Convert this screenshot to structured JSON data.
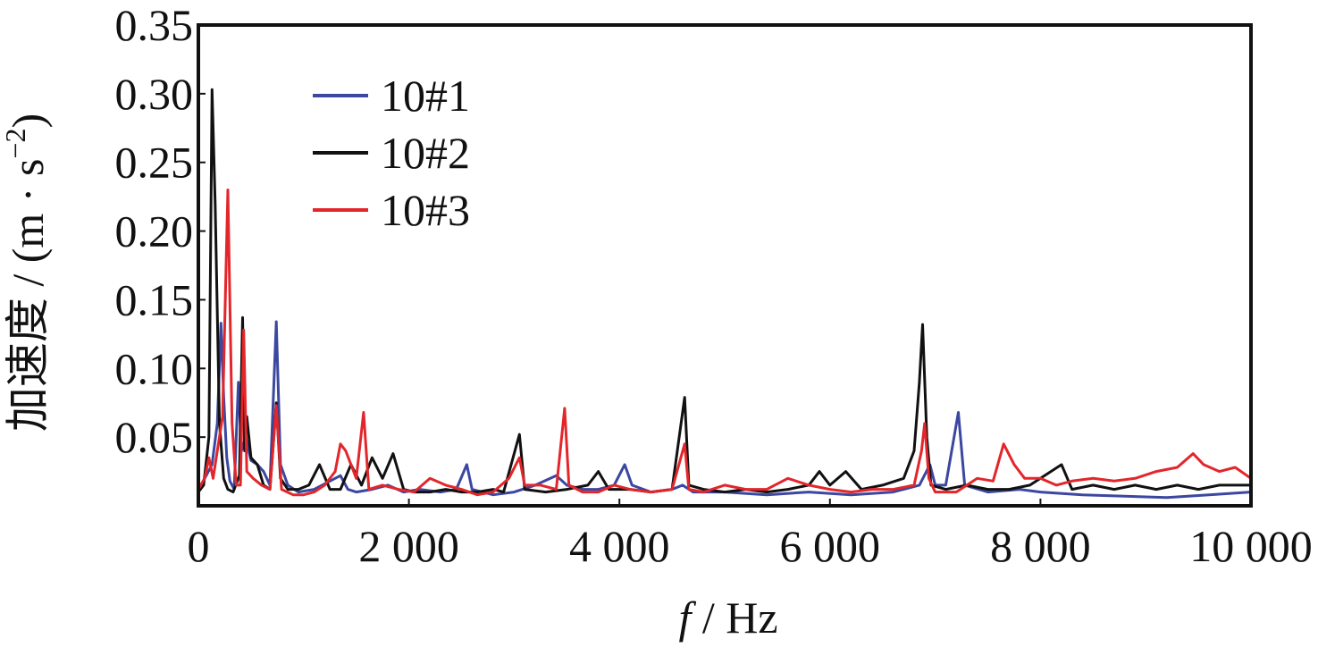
{
  "chart_data": {
    "type": "line",
    "title": "",
    "xlabel": {
      "var": "f",
      "unit": " / Hz"
    },
    "ylabel": {
      "main": "加速度 / (m · s",
      "sup": "−2",
      "close": ")"
    },
    "xlim": [
      0,
      10000
    ],
    "ylim": [
      0,
      0.35
    ],
    "x_ticks": [
      0,
      2000,
      4000,
      6000,
      8000,
      10000
    ],
    "x_tick_labels": [
      "0",
      "2 000",
      "4 000",
      "6 000",
      "8 000",
      "10 000"
    ],
    "y_ticks": [
      0.05,
      0.1,
      0.15,
      0.2,
      0.25,
      0.3,
      0.35
    ],
    "y_tick_labels": [
      "0.05",
      "0.10",
      "0.15",
      "0.20",
      "0.25",
      "0.30",
      "0.35"
    ],
    "grid": false,
    "legend_position": "top-left",
    "series": [
      {
        "name": "10#1",
        "color": "#3b47a0",
        "points": [
          [
            0,
            0.012
          ],
          [
            60,
            0.02
          ],
          [
            130,
            0.03
          ],
          [
            180,
            0.06
          ],
          [
            215,
            0.133
          ],
          [
            240,
            0.08
          ],
          [
            270,
            0.035
          ],
          [
            300,
            0.018
          ],
          [
            340,
            0.012
          ],
          [
            380,
            0.09
          ],
          [
            410,
            0.04
          ],
          [
            450,
            0.05
          ],
          [
            500,
            0.033
          ],
          [
            560,
            0.03
          ],
          [
            620,
            0.025
          ],
          [
            680,
            0.015
          ],
          [
            740,
            0.134
          ],
          [
            780,
            0.03
          ],
          [
            850,
            0.015
          ],
          [
            950,
            0.01
          ],
          [
            1100,
            0.012
          ],
          [
            1250,
            0.018
          ],
          [
            1350,
            0.022
          ],
          [
            1420,
            0.012
          ],
          [
            1500,
            0.01
          ],
          [
            1650,
            0.012
          ],
          [
            1800,
            0.015
          ],
          [
            1950,
            0.01
          ],
          [
            2100,
            0.012
          ],
          [
            2300,
            0.01
          ],
          [
            2450,
            0.012
          ],
          [
            2550,
            0.03
          ],
          [
            2600,
            0.012
          ],
          [
            2800,
            0.008
          ],
          [
            3000,
            0.01
          ],
          [
            3200,
            0.015
          ],
          [
            3400,
            0.022
          ],
          [
            3500,
            0.015
          ],
          [
            3650,
            0.012
          ],
          [
            3800,
            0.012
          ],
          [
            3950,
            0.015
          ],
          [
            4050,
            0.03
          ],
          [
            4120,
            0.015
          ],
          [
            4300,
            0.01
          ],
          [
            4500,
            0.012
          ],
          [
            4600,
            0.015
          ],
          [
            4700,
            0.01
          ],
          [
            5000,
            0.01
          ],
          [
            5400,
            0.008
          ],
          [
            5800,
            0.01
          ],
          [
            6200,
            0.008
          ],
          [
            6600,
            0.01
          ],
          [
            6850,
            0.015
          ],
          [
            6950,
            0.03
          ],
          [
            7000,
            0.015
          ],
          [
            7100,
            0.015
          ],
          [
            7220,
            0.068
          ],
          [
            7280,
            0.015
          ],
          [
            7500,
            0.01
          ],
          [
            7800,
            0.012
          ],
          [
            8000,
            0.01
          ],
          [
            8400,
            0.008
          ],
          [
            8800,
            0.007
          ],
          [
            9200,
            0.006
          ],
          [
            9600,
            0.008
          ],
          [
            10000,
            0.01
          ]
        ]
      },
      {
        "name": "10#2",
        "color": "#111111",
        "points": [
          [
            0,
            0.01
          ],
          [
            50,
            0.015
          ],
          [
            100,
            0.05
          ],
          [
            130,
            0.303
          ],
          [
            160,
            0.22
          ],
          [
            200,
            0.06
          ],
          [
            240,
            0.02
          ],
          [
            280,
            0.012
          ],
          [
            330,
            0.01
          ],
          [
            390,
            0.022
          ],
          [
            420,
            0.137
          ],
          [
            440,
            0.04
          ],
          [
            460,
            0.065
          ],
          [
            500,
            0.035
          ],
          [
            560,
            0.03
          ],
          [
            620,
            0.015
          ],
          [
            680,
            0.012
          ],
          [
            740,
            0.075
          ],
          [
            780,
            0.02
          ],
          [
            850,
            0.012
          ],
          [
            950,
            0.012
          ],
          [
            1050,
            0.015
          ],
          [
            1150,
            0.03
          ],
          [
            1250,
            0.012
          ],
          [
            1350,
            0.012
          ],
          [
            1450,
            0.03
          ],
          [
            1550,
            0.015
          ],
          [
            1650,
            0.035
          ],
          [
            1750,
            0.02
          ],
          [
            1850,
            0.038
          ],
          [
            1950,
            0.012
          ],
          [
            2050,
            0.01
          ],
          [
            2200,
            0.01
          ],
          [
            2350,
            0.012
          ],
          [
            2500,
            0.01
          ],
          [
            2650,
            0.01
          ],
          [
            2800,
            0.012
          ],
          [
            2900,
            0.01
          ],
          [
            3050,
            0.052
          ],
          [
            3100,
            0.012
          ],
          [
            3300,
            0.01
          ],
          [
            3500,
            0.012
          ],
          [
            3700,
            0.015
          ],
          [
            3800,
            0.025
          ],
          [
            3900,
            0.012
          ],
          [
            4100,
            0.012
          ],
          [
            4300,
            0.01
          ],
          [
            4500,
            0.012
          ],
          [
            4620,
            0.079
          ],
          [
            4660,
            0.015
          ],
          [
            4800,
            0.012
          ],
          [
            5000,
            0.01
          ],
          [
            5200,
            0.012
          ],
          [
            5400,
            0.01
          ],
          [
            5600,
            0.012
          ],
          [
            5800,
            0.015
          ],
          [
            5900,
            0.025
          ],
          [
            6000,
            0.015
          ],
          [
            6150,
            0.025
          ],
          [
            6300,
            0.012
          ],
          [
            6500,
            0.015
          ],
          [
            6700,
            0.02
          ],
          [
            6800,
            0.04
          ],
          [
            6850,
            0.09
          ],
          [
            6880,
            0.132
          ],
          [
            6920,
            0.05
          ],
          [
            6960,
            0.015
          ],
          [
            7100,
            0.012
          ],
          [
            7300,
            0.015
          ],
          [
            7500,
            0.012
          ],
          [
            7700,
            0.012
          ],
          [
            7900,
            0.015
          ],
          [
            8200,
            0.03
          ],
          [
            8300,
            0.012
          ],
          [
            8500,
            0.015
          ],
          [
            8700,
            0.012
          ],
          [
            8900,
            0.015
          ],
          [
            9100,
            0.012
          ],
          [
            9300,
            0.015
          ],
          [
            9500,
            0.012
          ],
          [
            9700,
            0.015
          ],
          [
            10000,
            0.015
          ]
        ]
      },
      {
        "name": "10#3",
        "color": "#e3262b",
        "points": [
          [
            0,
            0.012
          ],
          [
            60,
            0.02
          ],
          [
            100,
            0.035
          ],
          [
            140,
            0.02
          ],
          [
            180,
            0.04
          ],
          [
            230,
            0.065
          ],
          [
            280,
            0.23
          ],
          [
            320,
            0.06
          ],
          [
            360,
            0.015
          ],
          [
            400,
            0.015
          ],
          [
            430,
            0.128
          ],
          [
            460,
            0.025
          ],
          [
            520,
            0.02
          ],
          [
            600,
            0.015
          ],
          [
            680,
            0.012
          ],
          [
            740,
            0.073
          ],
          [
            790,
            0.012
          ],
          [
            900,
            0.008
          ],
          [
            1000,
            0.008
          ],
          [
            1100,
            0.01
          ],
          [
            1200,
            0.015
          ],
          [
            1300,
            0.025
          ],
          [
            1350,
            0.045
          ],
          [
            1400,
            0.04
          ],
          [
            1450,
            0.03
          ],
          [
            1500,
            0.02
          ],
          [
            1570,
            0.068
          ],
          [
            1620,
            0.012
          ],
          [
            1750,
            0.015
          ],
          [
            1900,
            0.012
          ],
          [
            2050,
            0.01
          ],
          [
            2200,
            0.02
          ],
          [
            2350,
            0.015
          ],
          [
            2500,
            0.012
          ],
          [
            2650,
            0.008
          ],
          [
            2800,
            0.01
          ],
          [
            2950,
            0.02
          ],
          [
            3050,
            0.035
          ],
          [
            3100,
            0.015
          ],
          [
            3250,
            0.015
          ],
          [
            3400,
            0.012
          ],
          [
            3480,
            0.071
          ],
          [
            3520,
            0.015
          ],
          [
            3650,
            0.01
          ],
          [
            3800,
            0.01
          ],
          [
            3950,
            0.015
          ],
          [
            4100,
            0.012
          ],
          [
            4300,
            0.01
          ],
          [
            4500,
            0.012
          ],
          [
            4620,
            0.045
          ],
          [
            4660,
            0.012
          ],
          [
            4800,
            0.01
          ],
          [
            5000,
            0.015
          ],
          [
            5200,
            0.012
          ],
          [
            5400,
            0.012
          ],
          [
            5600,
            0.02
          ],
          [
            5800,
            0.015
          ],
          [
            6000,
            0.012
          ],
          [
            6200,
            0.01
          ],
          [
            6400,
            0.012
          ],
          [
            6600,
            0.012
          ],
          [
            6800,
            0.015
          ],
          [
            6870,
            0.04
          ],
          [
            6900,
            0.06
          ],
          [
            6940,
            0.02
          ],
          [
            7000,
            0.01
          ],
          [
            7200,
            0.01
          ],
          [
            7400,
            0.02
          ],
          [
            7550,
            0.018
          ],
          [
            7650,
            0.045
          ],
          [
            7750,
            0.03
          ],
          [
            7850,
            0.02
          ],
          [
            8000,
            0.02
          ],
          [
            8150,
            0.015
          ],
          [
            8300,
            0.018
          ],
          [
            8500,
            0.02
          ],
          [
            8700,
            0.018
          ],
          [
            8900,
            0.02
          ],
          [
            9100,
            0.025
          ],
          [
            9300,
            0.028
          ],
          [
            9450,
            0.038
          ],
          [
            9550,
            0.03
          ],
          [
            9700,
            0.025
          ],
          [
            9850,
            0.028
          ],
          [
            10000,
            0.02
          ]
        ]
      }
    ]
  }
}
